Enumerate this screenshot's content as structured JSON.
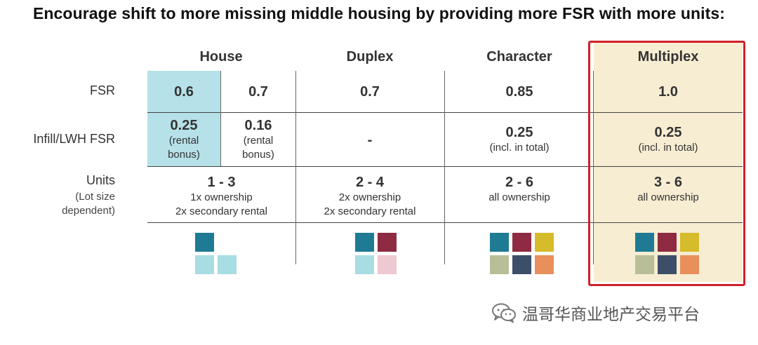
{
  "title": "Encourage shift to more missing middle housing by providing more FSR with more units:",
  "columns": {
    "house": "House",
    "duplex": "Duplex",
    "character": "Character",
    "multiplex": "Multiplex"
  },
  "rows": {
    "fsr": "FSR",
    "infill": "Infill/LWH FSR",
    "units": "Units",
    "units_note_1": "(Lot size",
    "units_note_2": "dependent)"
  },
  "fsr": {
    "house_a": "0.6",
    "house_b": "0.7",
    "duplex": "0.7",
    "character": "0.85",
    "multiplex": "1.0"
  },
  "infill": {
    "house_a": "0.25",
    "house_a_note_1": "(rental",
    "house_a_note_2": "bonus)",
    "house_b": "0.16",
    "house_b_note_1": "(rental",
    "house_b_note_2": "bonus)",
    "duplex": "-",
    "character": "0.25",
    "character_note": "(incl. in total)",
    "multiplex": "0.25",
    "multiplex_note": "(incl. in total)"
  },
  "units": {
    "house": "1 - 3",
    "house_l1": "1x ownership",
    "house_l2": "2x secondary rental",
    "duplex": "2 - 4",
    "duplex_l1": "2x ownership",
    "duplex_l2": "2x secondary rental",
    "character": "2 - 6",
    "character_l1": "all ownership",
    "multiplex": "3 - 6",
    "multiplex_l1": "all ownership"
  },
  "colors": {
    "highlight_border": "#d0202a",
    "highlight_fill": "#f7edd3",
    "house_shade": "#b6e1e8",
    "teal_dark": "#1f7b93",
    "teal_light": "#a7dde3",
    "maroon": "#8e2b42",
    "pink_light": "#efc9d1",
    "mustard": "#d6bb2b",
    "sage": "#b8bf98",
    "slate": "#3c4f69",
    "orange": "#e98f5c"
  },
  "watermark": {
    "icon": "wechat-icon",
    "text": "温哥华商业地产交易平台"
  }
}
